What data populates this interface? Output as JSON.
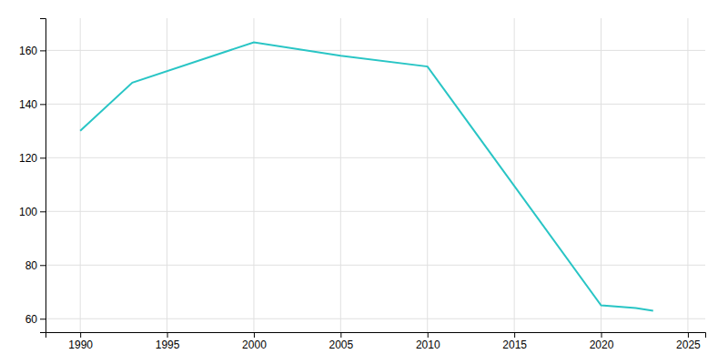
{
  "chart_data": {
    "type": "line",
    "x": [
      1990,
      1993,
      2000,
      2005,
      2010,
      2020,
      2022,
      2023
    ],
    "values": [
      130,
      148,
      163,
      158,
      154,
      65,
      64,
      63
    ],
    "color": "#29C5C5",
    "xlim": [
      1988,
      2026
    ],
    "ylim": [
      55,
      172
    ],
    "xticks": [
      1990,
      1995,
      2000,
      2005,
      2010,
      2015,
      2020,
      2025
    ],
    "yticks": [
      60,
      80,
      100,
      120,
      140,
      160
    ],
    "grid": true
  }
}
